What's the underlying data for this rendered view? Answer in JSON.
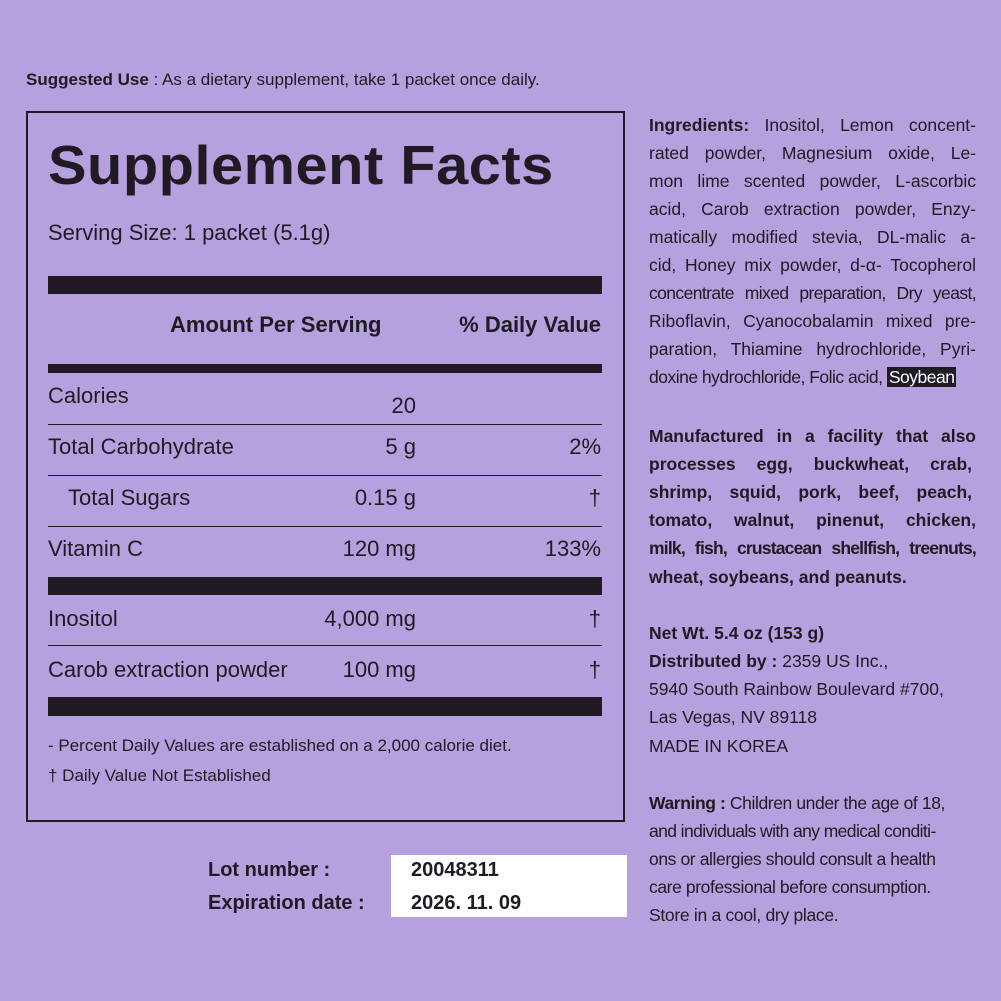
{
  "suggested_use": {
    "label": "Suggested Use",
    "text": " : As a dietary supplement, take 1 packet once daily."
  },
  "facts": {
    "title": "Supplement Facts",
    "serving_size": "Serving Size: 1 packet (5.1g)",
    "header_amount": "Amount Per Serving",
    "header_dv": "% Daily Value",
    "rows": [
      {
        "name": "Calories",
        "amount": "20",
        "dv": ""
      },
      {
        "name": "Total Carbohydrate",
        "amount": "5 g",
        "dv": "2%"
      },
      {
        "name": "Total Sugars",
        "amount": "0.15 g",
        "dv": "†"
      },
      {
        "name": "Vitamin C",
        "amount": "120 mg",
        "dv": "133%"
      },
      {
        "name": "Inositol",
        "amount": "4,000 mg",
        "dv": "†"
      },
      {
        "name": "Carob extraction powder",
        "amount": "100 mg",
        "dv": "†"
      }
    ],
    "footnote1": "- Percent Daily Values are established on a 2,000 calorie diet.",
    "footnote2": "† Daily Value Not Established"
  },
  "lot": {
    "lot_label": "Lot number :",
    "lot_value": "20048311",
    "exp_label": "Expiration date :",
    "exp_value": "2026. 11. 09"
  },
  "ingredients": {
    "label": "Ingredients:",
    "lines": [
      " Inositol, Lemon concent-",
      "rated powder, Magnesium oxide, Le-",
      "mon lime scented powder, L-ascorbic",
      "acid, Carob extraction powder, Enzy-",
      "matically modified stevia, DL-malic a-",
      "cid, Honey mix powder, d-α- Tocopherol",
      "concentrate mixed preparation, Dry yeast,",
      "Riboflavin, Cyanocobalamin mixed pre-",
      "paration, Thiamine hydrochloride, Pyri-",
      "doxine hydrochloride, Folic acid,"
    ],
    "highlight": "Soybean"
  },
  "allergen": {
    "lines": [
      "Manufactured in a facility that also",
      "processes egg, buckwheat, crab,",
      "shrimp, squid, pork, beef, peach,",
      "tomato, walnut, pinenut, chicken,",
      "milk, fish, crustacean shellfish, treenuts,",
      "wheat,  soybeans, and peanuts."
    ]
  },
  "distribution": {
    "net_wt": "Net Wt. 5.4 oz (153 g)",
    "dist_label": "Distributed by :",
    "dist_name": " 2359 US Inc.,",
    "address1": "5940 South Rainbow Boulevard #700,",
    "address2": "Las Vegas, NV 89118",
    "origin": "MADE IN KOREA"
  },
  "warning": {
    "label": "Warning :",
    "lines": [
      " Children under the age of 18,",
      "and  individuals with any medical conditi-",
      "ons or allergies should consult a health",
      "care professional before consumption.",
      "Store in a cool, dry place."
    ]
  },
  "colors": {
    "background": "#b4a1dd",
    "text": "#1f1a24"
  }
}
